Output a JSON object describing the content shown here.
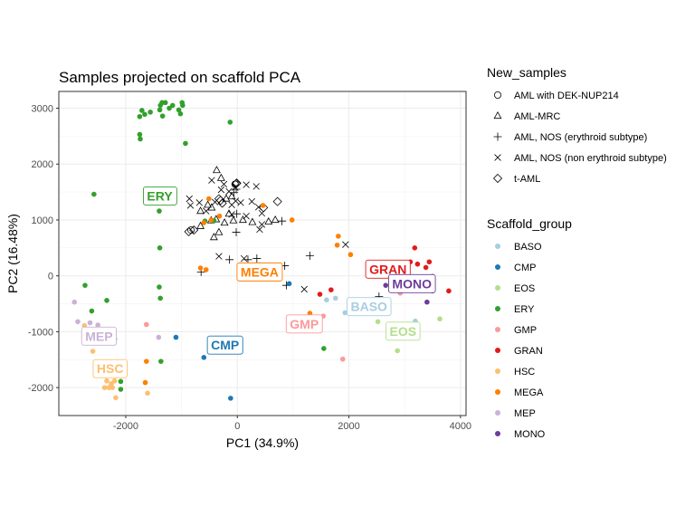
{
  "chart_data": {
    "type": "scatter",
    "title": "Samples projected on scaffold PCA",
    "xlabel": "PC1 (34.9%)",
    "ylabel": "PC2 (16.48%)",
    "xlim": [
      -3200,
      4100
    ],
    "ylim": [
      -2500,
      3300
    ],
    "xticks": [
      -2000,
      0,
      2000,
      4000
    ],
    "yticks": [
      -2000,
      -1000,
      0,
      1000,
      2000,
      3000
    ],
    "xtick_labels": [
      "-2000",
      "0",
      "2000",
      "4000"
    ],
    "ytick_labels": [
      "-2000",
      "-1000",
      "0",
      "1000",
      "2000",
      "3000"
    ],
    "grid": true,
    "legend_position": "right",
    "new_samples_legend": {
      "title": "New_samples",
      "items": [
        {
          "label": "AML with DEK-NUP214",
          "shape": "circle"
        },
        {
          "label": "AML-MRC",
          "shape": "triangle"
        },
        {
          "label": "AML, NOS (erythroid subtype)",
          "shape": "plus"
        },
        {
          "label": "AML, NOS (non erythroid subtype)",
          "shape": "cross"
        },
        {
          "label": "t-AML",
          "shape": "diamond"
        }
      ]
    },
    "scaffold_legend": {
      "title": "Scaffold_group",
      "items": [
        {
          "label": "BASO",
          "color": "#A6CEE3"
        },
        {
          "label": "CMP",
          "color": "#1F78B4"
        },
        {
          "label": "EOS",
          "color": "#B2DF8A"
        },
        {
          "label": "ERY",
          "color": "#33A02C"
        },
        {
          "label": "GMP",
          "color": "#FB9A99"
        },
        {
          "label": "GRAN",
          "color": "#E31A1C"
        },
        {
          "label": "HSC",
          "color": "#FDBF6F"
        },
        {
          "label": "MEGA",
          "color": "#FF7F00"
        },
        {
          "label": "MEP",
          "color": "#CAB2D6"
        },
        {
          "label": "MONO",
          "color": "#6A3D9A"
        }
      ]
    },
    "cluster_labels": [
      {
        "text": "ERY",
        "group": "ERY",
        "x": -1390,
        "y": 1430
      },
      {
        "text": "MEGA",
        "group": "MEGA",
        "x": 400,
        "y": 70
      },
      {
        "text": "CMP",
        "group": "CMP",
        "x": -220,
        "y": -1240
      },
      {
        "text": "GMP",
        "group": "GMP",
        "x": 1200,
        "y": -860
      },
      {
        "text": "BASO",
        "group": "BASO",
        "x": 2360,
        "y": -550
      },
      {
        "text": "EOS",
        "group": "EOS",
        "x": 2970,
        "y": -990
      },
      {
        "text": "GRAN",
        "group": "GRAN",
        "x": 2700,
        "y": 120
      },
      {
        "text": "MONO",
        "group": "MONO",
        "x": 3130,
        "y": -140
      },
      {
        "text": "MEP",
        "group": "MEP",
        "x": -2480,
        "y": -1080
      },
      {
        "text": "HSC",
        "group": "HSC",
        "x": -2280,
        "y": -1660
      }
    ],
    "series": [
      {
        "name": "ERY",
        "points": [
          [
            -1710,
            2960
          ],
          [
            -1750,
            2850
          ],
          [
            -1660,
            2890
          ],
          [
            -1560,
            2930
          ],
          [
            -1380,
            3050
          ],
          [
            -1350,
            3100
          ],
          [
            -1290,
            3100
          ],
          [
            -1220,
            3000
          ],
          [
            -1160,
            3050
          ],
          [
            -1050,
            2970
          ],
          [
            -990,
            3100
          ],
          [
            -980,
            3050
          ],
          [
            -1390,
            2970
          ],
          [
            -1340,
            2860
          ],
          [
            -1020,
            2900
          ],
          [
            -1750,
            2530
          ],
          [
            -1740,
            2450
          ],
          [
            -930,
            2370
          ],
          [
            -130,
            2750
          ],
          [
            -2570,
            1460
          ],
          [
            -1400,
            1160
          ],
          [
            -1390,
            500
          ],
          [
            -2730,
            -170
          ],
          [
            -2610,
            -630
          ],
          [
            -2340,
            -440
          ],
          [
            -1380,
            -400
          ],
          [
            -1400,
            -200
          ],
          [
            -2200,
            -1130
          ],
          [
            -1370,
            -1530
          ],
          [
            -2090,
            -2030
          ],
          [
            -2090,
            -1890
          ],
          [
            1550,
            -1300
          ],
          [
            -580,
            980
          ],
          [
            -420,
            990
          ]
        ]
      },
      {
        "name": "MEGA",
        "points": [
          [
            -510,
            1380
          ],
          [
            -470,
            1000
          ],
          [
            -320,
            1070
          ],
          [
            -660,
            140
          ],
          [
            -560,
            110
          ],
          [
            980,
            1000
          ],
          [
            460,
            1260
          ],
          [
            1810,
            710
          ],
          [
            1790,
            550
          ],
          [
            2030,
            380
          ],
          [
            -1630,
            -1530
          ],
          [
            -1650,
            -1910
          ],
          [
            1300,
            -670
          ],
          [
            -600,
            950
          ]
        ]
      },
      {
        "name": "HSC",
        "points": [
          [
            -2740,
            -890
          ],
          [
            -2590,
            -1350
          ],
          [
            -2340,
            -1880
          ],
          [
            -2260,
            -1930
          ],
          [
            -2240,
            -2000
          ],
          [
            -2300,
            -2000
          ],
          [
            -2200,
            -1880
          ],
          [
            -2180,
            -2180
          ],
          [
            -1610,
            -2100
          ],
          [
            -2380,
            -2000
          ]
        ]
      },
      {
        "name": "MEP",
        "points": [
          [
            -2920,
            -470
          ],
          [
            -2860,
            -820
          ],
          [
            -2640,
            -840
          ],
          [
            -2500,
            -880
          ],
          [
            -1410,
            -1100
          ],
          [
            -2560,
            -1150
          ]
        ]
      },
      {
        "name": "CMP",
        "points": [
          [
            -1100,
            -1100
          ],
          [
            -600,
            -1460
          ],
          [
            -120,
            -2190
          ],
          [
            930,
            -140
          ]
        ]
      },
      {
        "name": "GMP",
        "points": [
          [
            -1630,
            -870
          ],
          [
            1890,
            -1490
          ],
          [
            1540,
            -720
          ],
          [
            2920,
            -310
          ],
          [
            3000,
            -170
          ]
        ]
      },
      {
        "name": "BASO",
        "points": [
          [
            1600,
            -430
          ],
          [
            1760,
            -400
          ],
          [
            1930,
            -660
          ],
          [
            3190,
            -810
          ]
        ]
      },
      {
        "name": "EOS",
        "points": [
          [
            2520,
            -820
          ],
          [
            3630,
            -770
          ],
          [
            2870,
            -1340
          ]
        ]
      },
      {
        "name": "GRAN",
        "points": [
          [
            1680,
            -250
          ],
          [
            1480,
            -330
          ],
          [
            3180,
            500
          ],
          [
            3100,
            250
          ],
          [
            3230,
            210
          ],
          [
            3380,
            150
          ],
          [
            3440,
            250
          ],
          [
            3500,
            -10
          ],
          [
            3790,
            -270
          ],
          [
            2740,
            170
          ]
        ]
      },
      {
        "name": "MONO",
        "points": [
          [
            3400,
            -470
          ],
          [
            3500,
            -270
          ],
          [
            2660,
            -170
          ]
        ]
      }
    ],
    "new_sample_points": [
      {
        "shape": "triangle",
        "points": [
          [
            -370,
            1890
          ],
          [
            -290,
            1750
          ],
          [
            -660,
            890
          ],
          [
            -660,
            1160
          ],
          [
            -530,
            1270
          ],
          [
            -460,
            1220
          ],
          [
            -470,
            990
          ],
          [
            -380,
            1010
          ],
          [
            -330,
            780
          ],
          [
            -420,
            690
          ],
          [
            -230,
            950
          ],
          [
            -150,
            1110
          ],
          [
            -70,
            990
          ],
          [
            100,
            1000
          ],
          [
            270,
            960
          ],
          [
            560,
            970
          ],
          [
            680,
            1000
          ],
          [
            -200,
            1380
          ],
          [
            -100,
            1420
          ]
        ]
      },
      {
        "shape": "plus",
        "points": [
          [
            -60,
            1490
          ],
          [
            -20,
            1550
          ],
          [
            -10,
            1110
          ],
          [
            -20,
            780
          ],
          [
            350,
            310
          ],
          [
            190,
            290
          ],
          [
            850,
            180
          ],
          [
            1300,
            360
          ],
          [
            880,
            -170
          ],
          [
            2540,
            -370
          ],
          [
            800,
            980
          ],
          [
            -650,
            70
          ],
          [
            -140,
            290
          ]
        ]
      },
      {
        "shape": "cross",
        "points": [
          [
            -860,
            1380
          ],
          [
            -840,
            1260
          ],
          [
            -680,
            1310
          ],
          [
            -460,
            1710
          ],
          [
            -400,
            1320
          ],
          [
            -290,
            1540
          ],
          [
            -240,
            1640
          ],
          [
            -150,
            1510
          ],
          [
            -100,
            1270
          ],
          [
            -40,
            1580
          ],
          [
            60,
            1310
          ],
          [
            160,
            1630
          ],
          [
            260,
            1330
          ],
          [
            340,
            1600
          ],
          [
            380,
            1230
          ],
          [
            440,
            1120
          ],
          [
            440,
            920
          ],
          [
            400,
            830
          ],
          [
            160,
            1070
          ],
          [
            -100,
            1100
          ],
          [
            -330,
            350
          ],
          [
            120,
            310
          ],
          [
            1200,
            -240
          ],
          [
            1940,
            560
          ],
          [
            -30,
            1340
          ],
          [
            -560,
            1160
          ]
        ]
      },
      {
        "shape": "diamond",
        "points": [
          [
            -870,
            790
          ],
          [
            -780,
            820
          ],
          [
            -330,
            1380
          ],
          [
            -300,
            1350
          ],
          [
            -270,
            1300
          ],
          [
            -20,
            1650
          ],
          [
            -10,
            1660
          ],
          [
            470,
            1220
          ],
          [
            720,
            1330
          ]
        ]
      },
      {
        "shape": "circle",
        "points": [
          [
            -830,
            820
          ],
          [
            -40,
            1640
          ]
        ]
      }
    ]
  }
}
